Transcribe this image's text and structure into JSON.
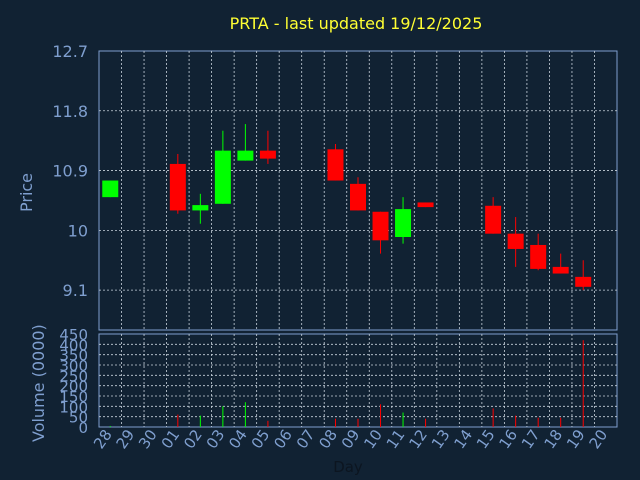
{
  "chart_data": [
    {
      "type": "candlestick",
      "title": "PRTA - last updated 19/12/2025",
      "ylabel": "Price",
      "ylim": [
        8.5,
        12.7
      ],
      "yticks": [
        "12.7",
        "11.8",
        "10.9",
        "10",
        "9.1"
      ],
      "ytick_values": [
        12.7,
        11.8,
        10.9,
        10.0,
        9.1
      ],
      "grid": true,
      "categories": [
        "28",
        "29",
        "30",
        "01",
        "02",
        "03",
        "04",
        "05",
        "06",
        "07",
        "08",
        "09",
        "10",
        "11",
        "12",
        "13",
        "14",
        "15",
        "16",
        "17",
        "18",
        "19",
        "20"
      ],
      "candles": [
        {
          "day": "28",
          "open": 10.5,
          "close": 10.75,
          "high": 10.75,
          "low": 10.5
        },
        {
          "day": "01",
          "open": 11.0,
          "close": 10.3,
          "high": 11.15,
          "low": 10.25
        },
        {
          "day": "02",
          "open": 10.3,
          "close": 10.38,
          "high": 10.55,
          "low": 10.1
        },
        {
          "day": "03",
          "open": 10.4,
          "close": 11.2,
          "high": 11.5,
          "low": 10.4
        },
        {
          "day": "04",
          "open": 11.05,
          "close": 11.2,
          "high": 11.6,
          "low": 11.05
        },
        {
          "day": "05",
          "open": 11.2,
          "close": 11.08,
          "high": 11.5,
          "low": 11.0
        },
        {
          "day": "08",
          "open": 11.22,
          "close": 10.75,
          "high": 11.3,
          "low": 10.75
        },
        {
          "day": "09",
          "open": 10.7,
          "close": 10.3,
          "high": 10.8,
          "low": 10.3
        },
        {
          "day": "10",
          "open": 10.28,
          "close": 9.85,
          "high": 10.28,
          "low": 9.65
        },
        {
          "day": "11",
          "open": 9.9,
          "close": 10.32,
          "high": 10.5,
          "low": 9.8
        },
        {
          "day": "12",
          "open": 10.42,
          "close": 10.35,
          "high": 10.42,
          "low": 10.35
        },
        {
          "day": "15",
          "open": 10.37,
          "close": 9.95,
          "high": 10.5,
          "low": 9.95
        },
        {
          "day": "16",
          "open": 9.95,
          "close": 9.72,
          "high": 10.2,
          "low": 9.45
        },
        {
          "day": "17",
          "open": 9.78,
          "close": 9.42,
          "high": 9.95,
          "low": 9.4
        },
        {
          "day": "18",
          "open": 9.45,
          "close": 9.35,
          "high": 9.65,
          "low": 9.35
        },
        {
          "day": "19",
          "open": 9.3,
          "close": 9.15,
          "high": 9.55,
          "low": 9.1
        }
      ],
      "colors": {
        "up": "#00ff00",
        "down": "#ff0000"
      }
    },
    {
      "type": "bar",
      "ylabel": "Volume (0000)",
      "xlabel": "Day",
      "ylim": [
        0,
        450
      ],
      "yticks": [
        "450",
        "400",
        "350",
        "300",
        "250",
        "200",
        "150",
        "100",
        "50",
        "0"
      ],
      "ytick_values": [
        450,
        400,
        350,
        300,
        250,
        200,
        150,
        100,
        50,
        0
      ],
      "bars": [
        {
          "day": "28",
          "value": 5,
          "dir": "up"
        },
        {
          "day": "01",
          "value": 60,
          "dir": "down"
        },
        {
          "day": "02",
          "value": 55,
          "dir": "up"
        },
        {
          "day": "03",
          "value": 100,
          "dir": "up"
        },
        {
          "day": "04",
          "value": 120,
          "dir": "up"
        },
        {
          "day": "05",
          "value": 30,
          "dir": "down"
        },
        {
          "day": "08",
          "value": 40,
          "dir": "down"
        },
        {
          "day": "09",
          "value": 40,
          "dir": "down"
        },
        {
          "day": "10",
          "value": 110,
          "dir": "down"
        },
        {
          "day": "11",
          "value": 70,
          "dir": "up"
        },
        {
          "day": "12",
          "value": 40,
          "dir": "down"
        },
        {
          "day": "15",
          "value": 90,
          "dir": "down"
        },
        {
          "day": "16",
          "value": 55,
          "dir": "down"
        },
        {
          "day": "17",
          "value": 45,
          "dir": "down"
        },
        {
          "day": "18",
          "value": 45,
          "dir": "down"
        },
        {
          "day": "19",
          "value": 420,
          "dir": "down"
        }
      ]
    }
  ]
}
